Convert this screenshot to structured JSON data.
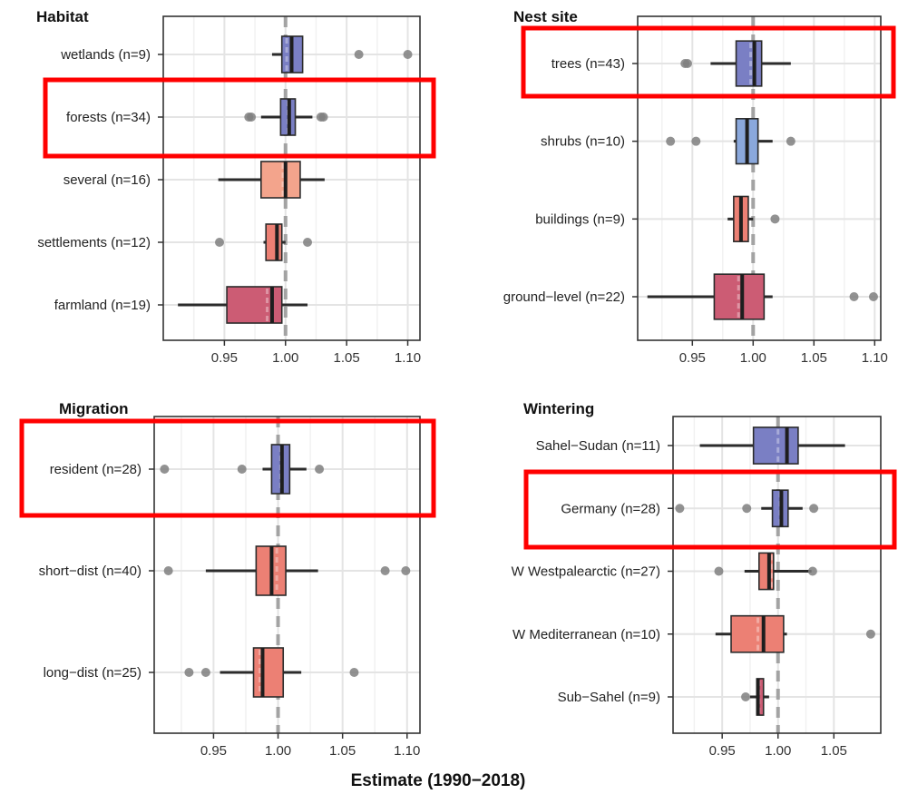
{
  "figure": {
    "xlabel": "Estimate (1990−2018)"
  },
  "colors": {
    "blue": "#7a7fc4",
    "lightblue": "#8aa8dc",
    "salmon": "#f3a48c",
    "coral": "#ec8074",
    "rose": "#cc5c74",
    "point": "#7f7f7f",
    "dash": "#a3a3a3",
    "highlight": "#ff0000"
  },
  "chart_data": [
    {
      "type": "box",
      "title": "Habitat",
      "xlim": [
        0.9,
        1.11
      ],
      "xticks": [
        "0.95",
        "1.00",
        "1.05",
        "1.10"
      ],
      "reference": 1.0,
      "categories": [
        {
          "label": "wetlands (n=9)",
          "q1": 0.997,
          "median": 1.005,
          "q3": 1.014,
          "whisker_low": 0.989,
          "whisker_high": 1.014,
          "mean": 1.001,
          "outliers": [
            1.06,
            1.1
          ],
          "color": "blue",
          "highlighted": false
        },
        {
          "label": "forests (n=34)",
          "q1": 0.996,
          "median": 1.003,
          "q3": 1.008,
          "whisker_low": 0.98,
          "whisker_high": 1.022,
          "mean": 1.002,
          "outliers": [
            0.97,
            0.972,
            1.029,
            1.031
          ],
          "color": "blue",
          "highlighted": true
        },
        {
          "label": "several (n=16)",
          "q1": 0.98,
          "median": 1.0,
          "q3": 1.012,
          "whisker_low": 0.945,
          "whisker_high": 1.032,
          "mean": 0.998,
          "outliers": [],
          "color": "salmon",
          "highlighted": false
        },
        {
          "label": "settlements (n=12)",
          "q1": 0.984,
          "median": 0.993,
          "q3": 0.997,
          "whisker_low": 0.982,
          "whisker_high": 1.0,
          "mean": 0.993,
          "outliers": [
            0.946,
            1.018
          ],
          "color": "coral",
          "highlighted": false
        },
        {
          "label": "farmland (n=19)",
          "q1": 0.952,
          "median": 0.989,
          "q3": 0.997,
          "whisker_low": 0.912,
          "whisker_high": 1.018,
          "mean": 0.985,
          "outliers": [],
          "color": "rose",
          "highlighted": false
        }
      ]
    },
    {
      "type": "box",
      "title": "Nest site",
      "xlim": [
        0.905,
        1.105
      ],
      "xticks": [
        "0.95",
        "1.00",
        "1.05",
        "1.10"
      ],
      "reference": 1.0,
      "categories": [
        {
          "label": "trees (n=43)",
          "q1": 0.986,
          "median": 1.001,
          "q3": 1.007,
          "whisker_low": 0.965,
          "whisker_high": 1.031,
          "mean": 0.998,
          "outliers": [
            0.944,
            0.946
          ],
          "color": "blue",
          "highlighted": true
        },
        {
          "label": "shrubs (n=10)",
          "q1": 0.986,
          "median": 0.995,
          "q3": 1.004,
          "whisker_low": 0.984,
          "whisker_high": 1.016,
          "mean": 0.995,
          "outliers": [
            0.932,
            0.953,
            1.031
          ],
          "color": "lightblue",
          "highlighted": false
        },
        {
          "label": "buildings (n=9)",
          "q1": 0.984,
          "median": 0.99,
          "q3": 0.996,
          "whisker_low": 0.979,
          "whisker_high": 1.0,
          "mean": 0.99,
          "outliers": [
            1.018
          ],
          "color": "coral",
          "highlighted": false
        },
        {
          "label": "ground−level (n=22)",
          "q1": 0.968,
          "median": 0.991,
          "q3": 1.009,
          "whisker_low": 0.913,
          "whisker_high": 1.016,
          "mean": 0.988,
          "outliers": [
            1.083,
            1.099
          ],
          "color": "rose",
          "highlighted": false
        }
      ]
    },
    {
      "type": "box",
      "title": "Migration",
      "xlim": [
        0.904,
        1.11
      ],
      "xticks": [
        "0.95",
        "1.00",
        "1.05",
        "1.10"
      ],
      "reference": 1.0,
      "categories": [
        {
          "label": "resident (n=28)",
          "q1": 0.995,
          "median": 1.003,
          "q3": 1.009,
          "whisker_low": 0.988,
          "whisker_high": 1.022,
          "mean": 1.002,
          "outliers": [
            0.912,
            0.972,
            1.032
          ],
          "color": "blue",
          "highlighted": true
        },
        {
          "label": "short−dist (n=40)",
          "q1": 0.983,
          "median": 0.995,
          "q3": 1.006,
          "whisker_low": 0.944,
          "whisker_high": 1.031,
          "mean": 0.999,
          "outliers": [
            0.915,
            1.083,
            1.099
          ],
          "color": "coral",
          "highlighted": false
        },
        {
          "label": "long−dist (n=25)",
          "q1": 0.981,
          "median": 0.988,
          "q3": 1.004,
          "whisker_low": 0.955,
          "whisker_high": 1.018,
          "mean": 0.986,
          "outliers": [
            0.931,
            0.944,
            1.059
          ],
          "color": "coral",
          "highlighted": false
        }
      ]
    },
    {
      "type": "box",
      "title": "Wintering",
      "xlim": [
        0.906,
        1.092
      ],
      "xticks": [
        "0.95",
        "1.00",
        "1.05"
      ],
      "reference": 1.0,
      "categories": [
        {
          "label": "Sahel−Sudan (n=11)",
          "q1": 0.978,
          "median": 1.008,
          "q3": 1.018,
          "whisker_low": 0.93,
          "whisker_high": 1.06,
          "mean": 1.0,
          "outliers": [],
          "color": "blue",
          "highlighted": false
        },
        {
          "label": "Germany (n=28)",
          "q1": 0.995,
          "median": 1.003,
          "q3": 1.009,
          "whisker_low": 0.985,
          "whisker_high": 1.022,
          "mean": 1.002,
          "outliers": [
            0.912,
            0.972,
            1.032
          ],
          "color": "blue",
          "highlighted": true
        },
        {
          "label": "W Westpalearctic (n=27)",
          "q1": 0.983,
          "median": 0.992,
          "q3": 0.996,
          "whisker_low": 0.97,
          "whisker_high": 1.03,
          "mean": 0.994,
          "outliers": [
            0.947,
            1.031
          ],
          "color": "coral",
          "highlighted": false
        },
        {
          "label": "W Mediterranean (n=10)",
          "q1": 0.958,
          "median": 0.987,
          "q3": 1.005,
          "whisker_low": 0.944,
          "whisker_high": 1.008,
          "mean": 0.982,
          "outliers": [
            1.083
          ],
          "color": "coral",
          "highlighted": false
        },
        {
          "label": "Sub−Sahel (n=9)",
          "q1": 0.981,
          "median": 0.982,
          "q3": 0.987,
          "whisker_low": 0.975,
          "whisker_high": 0.992,
          "mean": 0.983,
          "outliers": [
            0.971
          ],
          "color": "rose",
          "highlighted": false
        }
      ]
    }
  ]
}
